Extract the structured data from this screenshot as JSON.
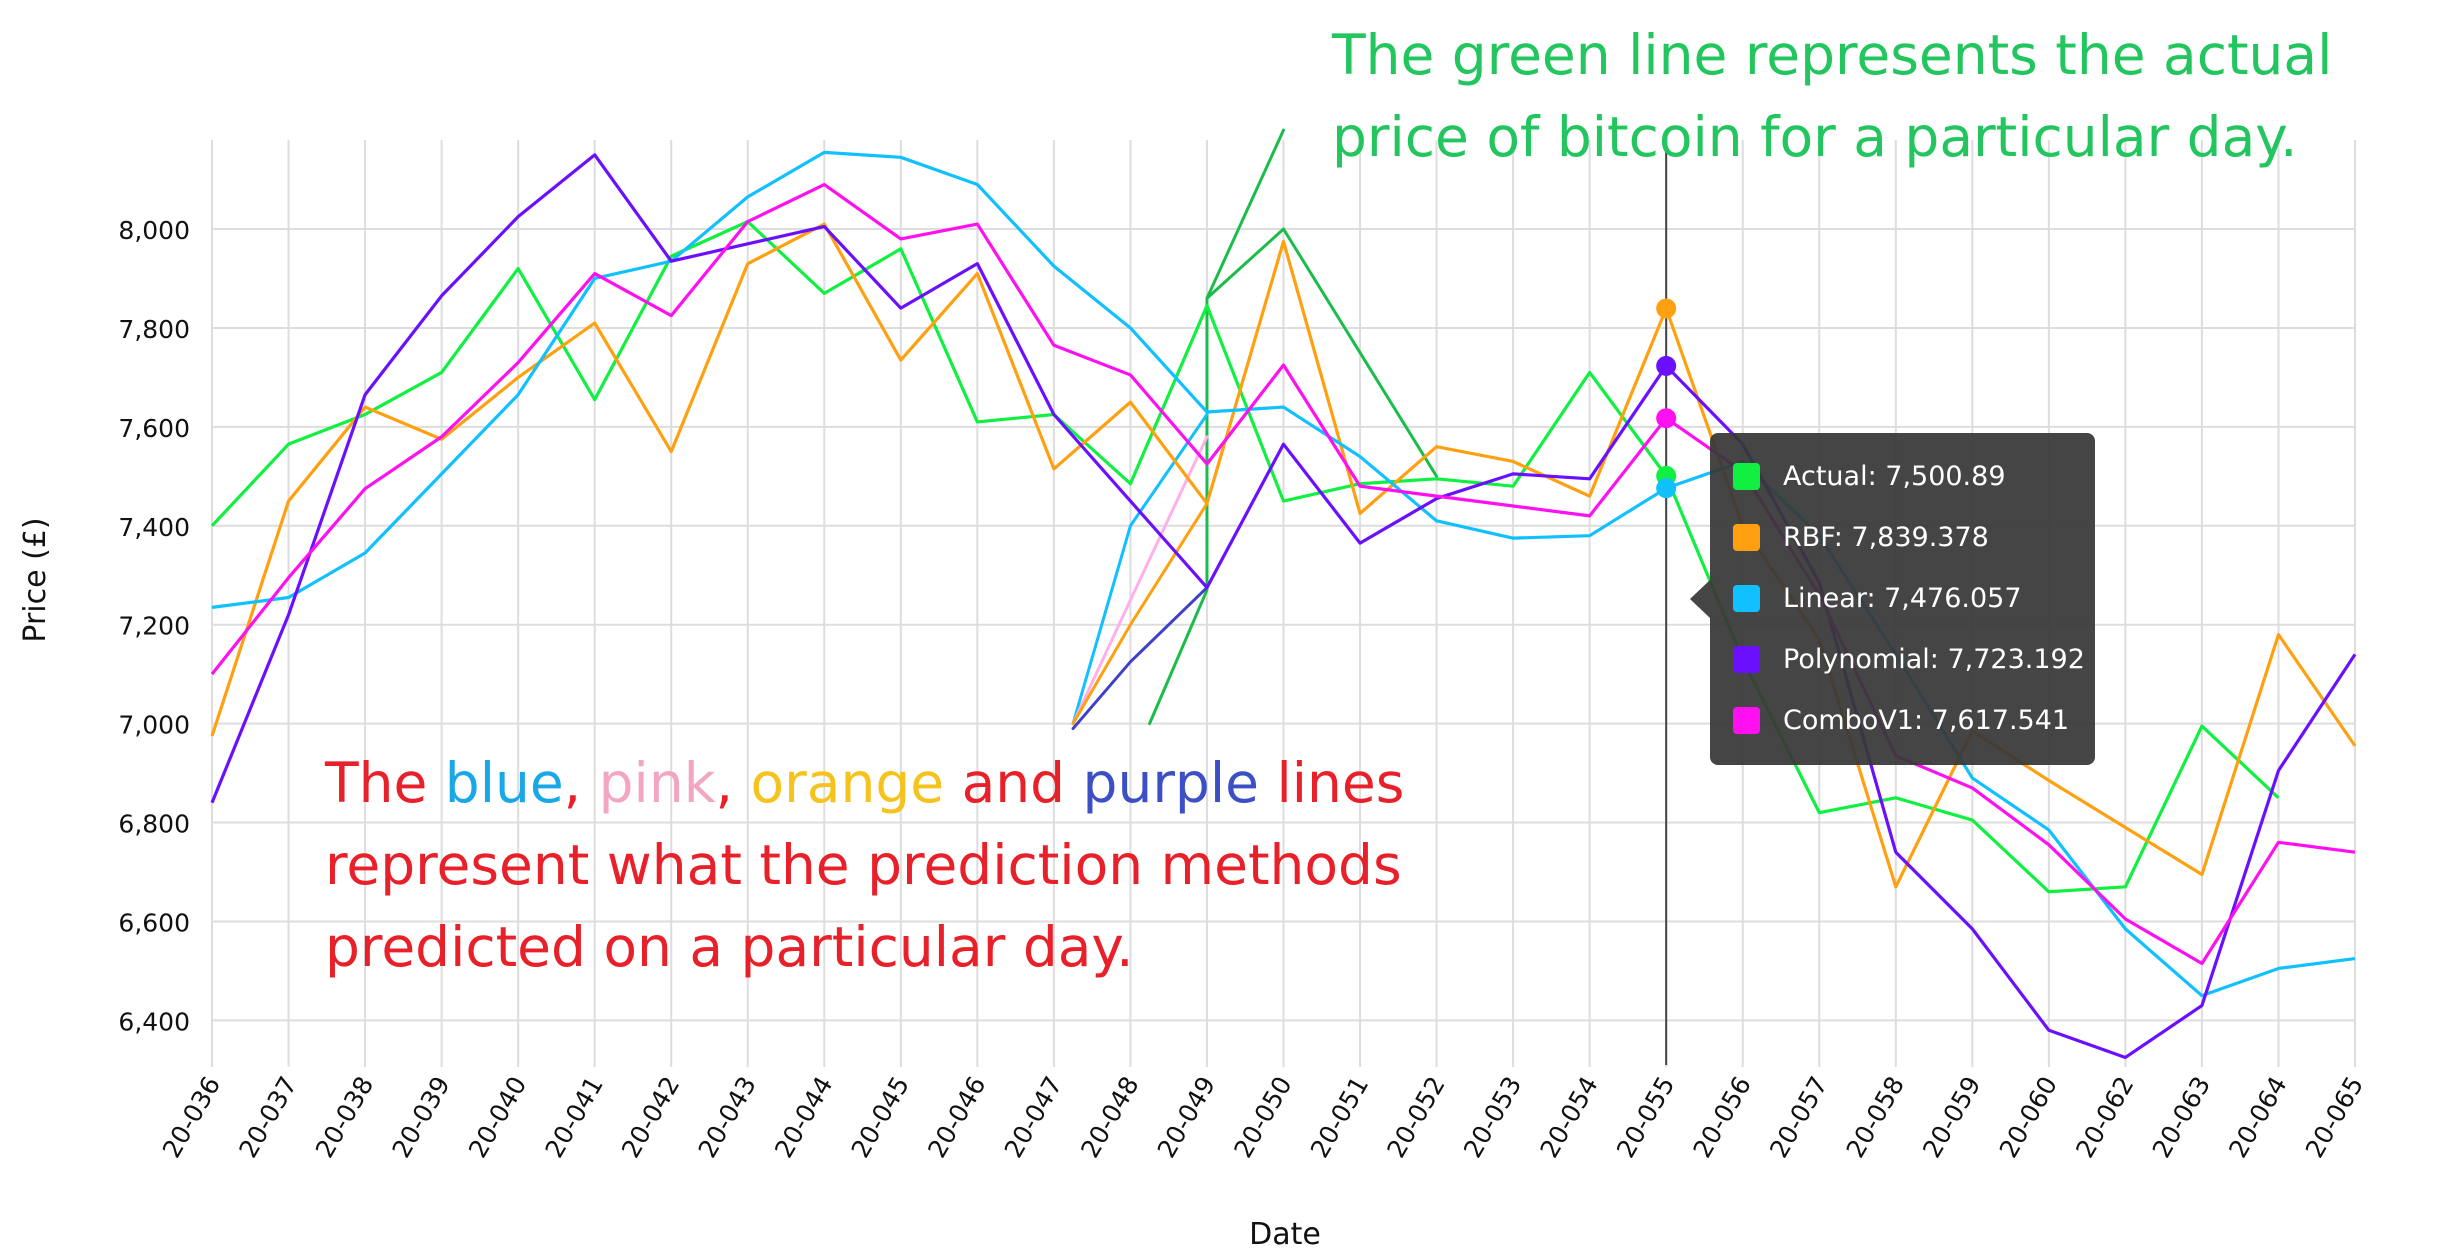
{
  "chart_data": {
    "type": "line",
    "xlabel": "Date",
    "ylabel": "Price (£)",
    "ylim": [
      6330,
      8180
    ],
    "yticks": [
      6400,
      6600,
      6800,
      7000,
      7200,
      7400,
      7600,
      7800,
      8000
    ],
    "yticks_text": [
      "6,400",
      "6,600",
      "6,800",
      "7,000",
      "7,200",
      "7,400",
      "7,600",
      "7,800",
      "8,000"
    ],
    "categories": [
      "20-036",
      "20-037",
      "20-038",
      "20-039",
      "20-040",
      "20-041",
      "20-042",
      "20-043",
      "20-044",
      "20-045",
      "20-046",
      "20-047",
      "20-048",
      "20-049",
      "20-050",
      "20-051",
      "20-052",
      "20-053",
      "20-054",
      "20-055",
      "20-056",
      "20-057",
      "20-058",
      "20-059",
      "20-060",
      "20-062",
      "20-063",
      "20-064",
      "20-065"
    ],
    "grid": true,
    "series": [
      {
        "name": "Actual",
        "color": "#10f040",
        "values": [
          7400,
          7565,
          7625,
          7710,
          7920,
          7655,
          7945,
          8015,
          7870,
          7960,
          7610,
          7625,
          7485,
          7845,
          7450,
          7485,
          7495,
          7480,
          7710,
          7500.89,
          7130,
          6820,
          6850,
          6805,
          6660,
          6670,
          6995,
          6850,
          null
        ]
      },
      {
        "name": "RBF",
        "color": "#ffa010",
        "values": [
          6975,
          7450,
          7640,
          7575,
          7700,
          7810,
          7550,
          7930,
          8010,
          7735,
          7910,
          7515,
          7650,
          7445,
          7975,
          7425,
          7560,
          7530,
          7460,
          7839.378,
          7400,
          7170,
          6670,
          6985,
          6885,
          6790,
          6695,
          7180,
          6955
        ]
      },
      {
        "name": "Linear",
        "color": "#10c0ff",
        "values": [
          7235,
          7255,
          7345,
          7505,
          7665,
          7900,
          7935,
          8065,
          8155,
          8145,
          8090,
          7925,
          7800,
          7630,
          7640,
          7540,
          7410,
          7375,
          7380,
          7476.057,
          7530,
          7380,
          7140,
          6890,
          6785,
          6585,
          6450,
          6505,
          6525
        ]
      },
      {
        "name": "Polynomial",
        "color": "#6a10ff",
        "values": [
          6840,
          7220,
          7665,
          7865,
          8025,
          8150,
          7935,
          7970,
          8005,
          7840,
          7930,
          7625,
          7450,
          7275,
          7565,
          7365,
          7455,
          7505,
          7495,
          7723.192,
          7565,
          7285,
          6740,
          6585,
          6380,
          6325,
          6430,
          6905,
          7140
        ]
      },
      {
        "name": "ComboV1",
        "color": "#ff10f0",
        "values": [
          7100,
          7295,
          7475,
          7580,
          7730,
          7910,
          7825,
          8015,
          8090,
          7980,
          8010,
          7765,
          7705,
          7525,
          7725,
          7480,
          7460,
          7440,
          7420,
          7617.541,
          7510,
          7260,
          6935,
          6870,
          6755,
          6605,
          6515,
          6760,
          6740
        ]
      }
    ],
    "hover_index": 19,
    "annotations": [
      {
        "kind": "segments",
        "color": "#1bbd4a",
        "points": [
          [
            12.25,
            7000
          ],
          [
            13.0,
            7270
          ],
          [
            13.0,
            7860
          ],
          [
            14.0,
            8000
          ],
          [
            16.0,
            7500
          ]
        ]
      },
      {
        "kind": "segments",
        "color": "#10c0ff",
        "points": [
          [
            11.25,
            7000
          ],
          [
            12.0,
            7400
          ],
          [
            13.0,
            7625
          ]
        ]
      },
      {
        "kind": "segments",
        "color": "#ffb0ea",
        "points": [
          [
            11.25,
            7000
          ],
          [
            12.0,
            7250
          ],
          [
            13.0,
            7580
          ]
        ]
      },
      {
        "kind": "segments",
        "color": "#ffa010",
        "points": [
          [
            11.25,
            7000
          ],
          [
            12.0,
            7200
          ],
          [
            13.0,
            7445
          ]
        ]
      },
      {
        "kind": "segments",
        "color": "#4040c8",
        "points": [
          [
            11.25,
            6990
          ],
          [
            12.0,
            7125
          ],
          [
            13.0,
            7275
          ]
        ]
      },
      {
        "kind": "segments",
        "color": "#1bbd4a",
        "points": [
          [
            13.0,
            7860
          ],
          [
            14.0,
            8200
          ]
        ]
      }
    ]
  },
  "tooltip": {
    "rows": [
      {
        "label": "Actual: 7,500.89",
        "color": "#10f040"
      },
      {
        "label": "RBF: 7,839.378",
        "color": "#ffa010"
      },
      {
        "label": "Linear: 7,476.057",
        "color": "#10c0ff"
      },
      {
        "label": "Polynomial: 7,723.192",
        "color": "#6a10ff"
      },
      {
        "label": "ComboV1: 7,617.541",
        "color": "#ff10f0"
      }
    ]
  },
  "notes": {
    "top": {
      "text": "The green line represents the actual price of bitcoin for a particular day.",
      "color": "#22c55e"
    },
    "bottom": {
      "parts": [
        {
          "text": "The ",
          "color": "#e8202a"
        },
        {
          "text": "blue",
          "color": "#1aa7e8"
        },
        {
          "text": ", ",
          "color": "#e8202a"
        },
        {
          "text": "pink",
          "color": "#f3a6c4"
        },
        {
          "text": ", ",
          "color": "#e8202a"
        },
        {
          "text": "orange",
          "color": "#f6c21c"
        },
        {
          "text": " and ",
          "color": "#e8202a"
        },
        {
          "text": "purple",
          "color": "#3d4fc4"
        },
        {
          "text": " lines represent what the prediction methods predicted on a particular day.",
          "color": "#e8202a"
        }
      ]
    }
  }
}
